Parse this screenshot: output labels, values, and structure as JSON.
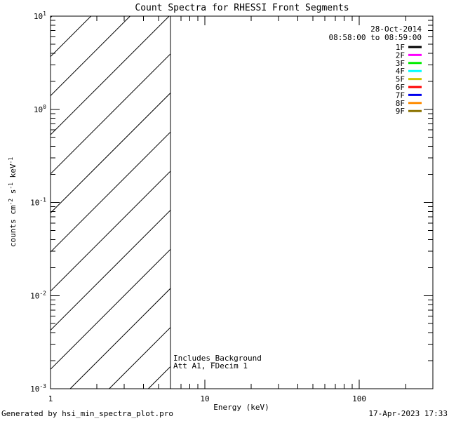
{
  "page": {
    "background_color": "#FFFFFF",
    "text_color": "#000000"
  },
  "chart_data": {
    "type": "line",
    "title": "Count Spectra for RHESSI Front Segments",
    "xlabel": "Energy (keV)",
    "ylabel": "counts cm^-2 s^-1 keV^-1",
    "ylabel_parts": [
      {
        "text": "counts cm"
      },
      {
        "text": "-2",
        "sup": true
      },
      {
        "text": " s"
      },
      {
        "text": "-1",
        "sup": true
      },
      {
        "text": " keV"
      },
      {
        "text": "-1",
        "sup": true
      }
    ],
    "x_scale": "log",
    "y_scale": "log",
    "xlim": [
      1,
      300
    ],
    "ylim": [
      0.001,
      10
    ],
    "x_major_ticks": [
      1,
      10,
      100
    ],
    "x_tick_labels": [
      "1",
      "10",
      "100"
    ],
    "y_major_ticks": [
      10,
      1,
      0.1,
      0.01,
      0.001
    ],
    "y_tick_exponents": [
      "1",
      "0",
      "-1",
      "-2",
      "-3"
    ],
    "grid": false,
    "legend_position": "top-right",
    "no_curves_plotted": true,
    "series": [
      {
        "name": "1F",
        "color": "#000000",
        "values": []
      },
      {
        "name": "2F",
        "color": "#FF00FF",
        "values": []
      },
      {
        "name": "3F",
        "color": "#00EE00",
        "values": []
      },
      {
        "name": "4F",
        "color": "#00FFFF",
        "values": []
      },
      {
        "name": "5F",
        "color": "#CFC800",
        "values": []
      },
      {
        "name": "6F",
        "color": "#FF0000",
        "values": []
      },
      {
        "name": "7F",
        "color": "#0000EE",
        "values": []
      },
      {
        "name": "8F",
        "color": "#FF8C00",
        "values": []
      },
      {
        "name": "9F",
        "color": "#8C7300",
        "values": []
      }
    ],
    "hatch_region": {
      "x_from": 1,
      "x_to": 6,
      "style": "diagonal-lines-45deg"
    },
    "annotations": {
      "date": "28-Oct-2014",
      "time_range": "08:58:00 to 08:59:00",
      "line1": "Includes_Background",
      "line2": "Att A1, FDecim 1"
    }
  },
  "footer": {
    "left": "Generated by hsi_min_spectra_plot.pro",
    "right": "17-Apr-2023 17:33"
  }
}
